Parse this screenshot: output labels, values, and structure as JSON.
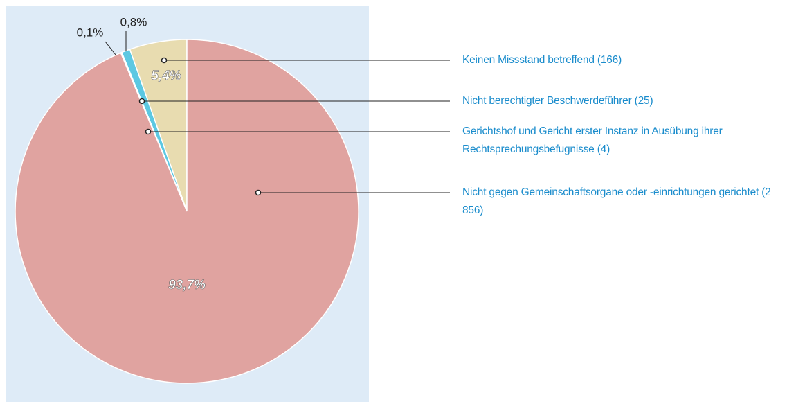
{
  "chart_data": {
    "type": "pie",
    "categories": [
      "Keinen Missstand betreffend (166)",
      "Nicht berechtigter Beschwerdeführer (25)",
      "Gerichtshof und Gericht erster Instanz in Ausübung ihrer Rechtsprechungsbefugnisse (4)",
      "Nicht gegen Gemeinschaftsorgane oder -einrichtungen gerichtet (2 856)"
    ],
    "values": [
      5.4,
      0.8,
      0.1,
      93.7
    ],
    "value_labels": [
      "5,4%",
      "0,8%",
      "0,1%",
      "93,7%"
    ],
    "colors": [
      "#e8dcb0",
      "#5cc8e2",
      "#aadcec",
      "#e0a3a0"
    ]
  }
}
